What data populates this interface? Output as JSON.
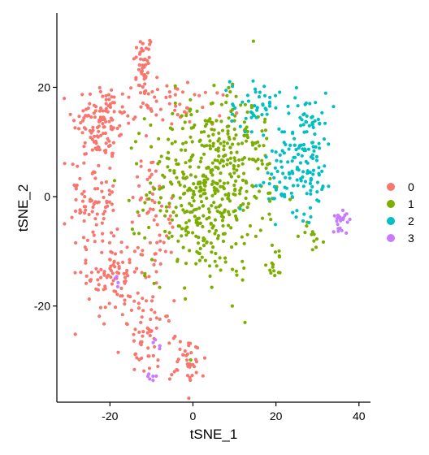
{
  "chart_data": {
    "type": "scatter",
    "title": "",
    "xlabel": "tSNE_1",
    "ylabel": "tSNE_2",
    "xlim": [
      -32,
      42
    ],
    "ylim": [
      -37,
      33
    ],
    "xticks": [
      -20,
      0,
      20,
      40
    ],
    "yticks": [
      -20,
      0,
      20
    ],
    "xtick_labels": [
      "-20",
      "0",
      "20",
      "40"
    ],
    "ytick_labels": [
      "-20",
      "0",
      "20"
    ],
    "grid": false,
    "legend_position": "right",
    "series": [
      {
        "name": "0",
        "color": "#F8766D",
        "clusters": [
          {
            "cx": -12,
            "cy": 24,
            "sx": 1.2,
            "sy": 3,
            "n": 45
          },
          {
            "cx": -22,
            "cy": 14,
            "sx": 3.5,
            "sy": 3.5,
            "n": 110
          },
          {
            "cx": -24,
            "cy": 0,
            "sx": 2.8,
            "sy": 6,
            "n": 90
          },
          {
            "cx": -19,
            "cy": -14,
            "sx": 3.2,
            "sy": 4,
            "n": 95
          },
          {
            "cx": -9,
            "cy": 17,
            "sx": 4,
            "sy": 2,
            "n": 40
          },
          {
            "cx": -11,
            "cy": 1,
            "sx": 2,
            "sy": 4,
            "n": 30
          },
          {
            "cx": -8,
            "cy": -9,
            "sx": 2,
            "sy": 4,
            "n": 30
          },
          {
            "cx": -11,
            "cy": -26,
            "sx": 3,
            "sy": 3.5,
            "n": 55
          },
          {
            "cx": -1,
            "cy": -30,
            "sx": 2,
            "sy": 2.5,
            "n": 40
          },
          {
            "cx": 3,
            "cy": 17,
            "sx": 4,
            "sy": 2,
            "n": 15
          }
        ]
      },
      {
        "name": "1",
        "color": "#7CAE00",
        "clusters": [
          {
            "cx": 3,
            "cy": 1,
            "sx": 7,
            "sy": 8,
            "n": 430
          },
          {
            "cx": 11,
            "cy": 10,
            "sx": 5,
            "sy": 5,
            "n": 70
          },
          {
            "cx": 20,
            "cy": -12,
            "sx": 1.5,
            "sy": 1.5,
            "n": 15
          },
          {
            "cx": 29,
            "cy": -7,
            "sx": 1.5,
            "sy": 1.5,
            "n": 12
          }
        ]
      },
      {
        "name": "2",
        "color": "#00BFC4",
        "clusters": [
          {
            "cx": 27,
            "cy": 8,
            "sx": 3.5,
            "sy": 5.5,
            "n": 145
          },
          {
            "cx": 15,
            "cy": 17,
            "sx": 3,
            "sy": 2.5,
            "n": 45
          },
          {
            "cx": 21,
            "cy": 2,
            "sx": 3,
            "sy": 2,
            "n": 25
          }
        ]
      },
      {
        "name": "3",
        "color": "#C77CFF",
        "clusters": [
          {
            "cx": 36,
            "cy": -4,
            "sx": 1.2,
            "sy": 1,
            "n": 22
          },
          {
            "cx": -10,
            "cy": -33.5,
            "sx": 0.6,
            "sy": 0.5,
            "n": 6
          },
          {
            "cx": -18,
            "cy": -15,
            "sx": 1,
            "sy": 1,
            "n": 4
          },
          {
            "cx": -9,
            "cy": -28,
            "sx": 1,
            "sy": 1,
            "n": 4
          }
        ]
      }
    ]
  }
}
